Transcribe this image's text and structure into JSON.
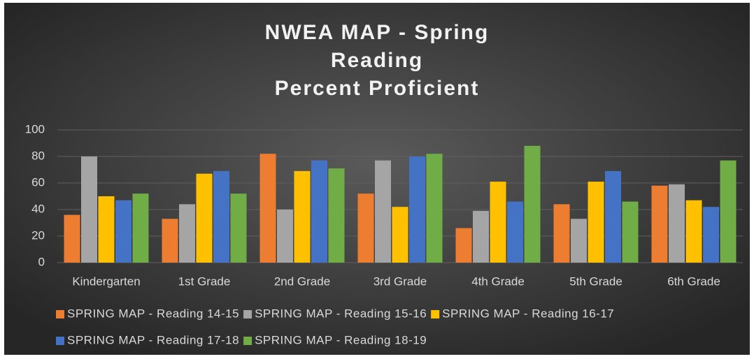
{
  "chart_data": {
    "type": "bar",
    "title": [
      "NWEA MAP - Spring",
      "Reading",
      "Percent Proficient"
    ],
    "categories": [
      "Kindergarten",
      "1st Grade",
      "2nd Grade",
      "3rd Grade",
      "4th Grade",
      "5th Grade",
      "6th Grade"
    ],
    "series": [
      {
        "name": "SPRING MAP - Reading 14-15",
        "color": "#ed7d31",
        "values": [
          36,
          33,
          82,
          52,
          26,
          44,
          58
        ]
      },
      {
        "name": "SPRING MAP - Reading 15-16",
        "color": "#a5a5a5",
        "values": [
          80,
          44,
          40,
          77,
          39,
          33,
          59
        ]
      },
      {
        "name": "SPRING MAP - Reading 16-17",
        "color": "#ffc000",
        "values": [
          50,
          67,
          69,
          42,
          61,
          61,
          47
        ]
      },
      {
        "name": "SPRING MAP - Reading 17-18",
        "color": "#4472c4",
        "values": [
          47,
          69,
          77,
          80,
          46,
          69,
          42
        ]
      },
      {
        "name": "SPRING MAP - Reading 18-19",
        "color": "#70ad47",
        "values": [
          52,
          52,
          71,
          82,
          88,
          46,
          77
        ]
      }
    ],
    "ylim": [
      0,
      100
    ],
    "yticks": [
      0,
      20,
      40,
      60,
      80,
      100
    ],
    "grid": true,
    "legend": "bottom"
  }
}
